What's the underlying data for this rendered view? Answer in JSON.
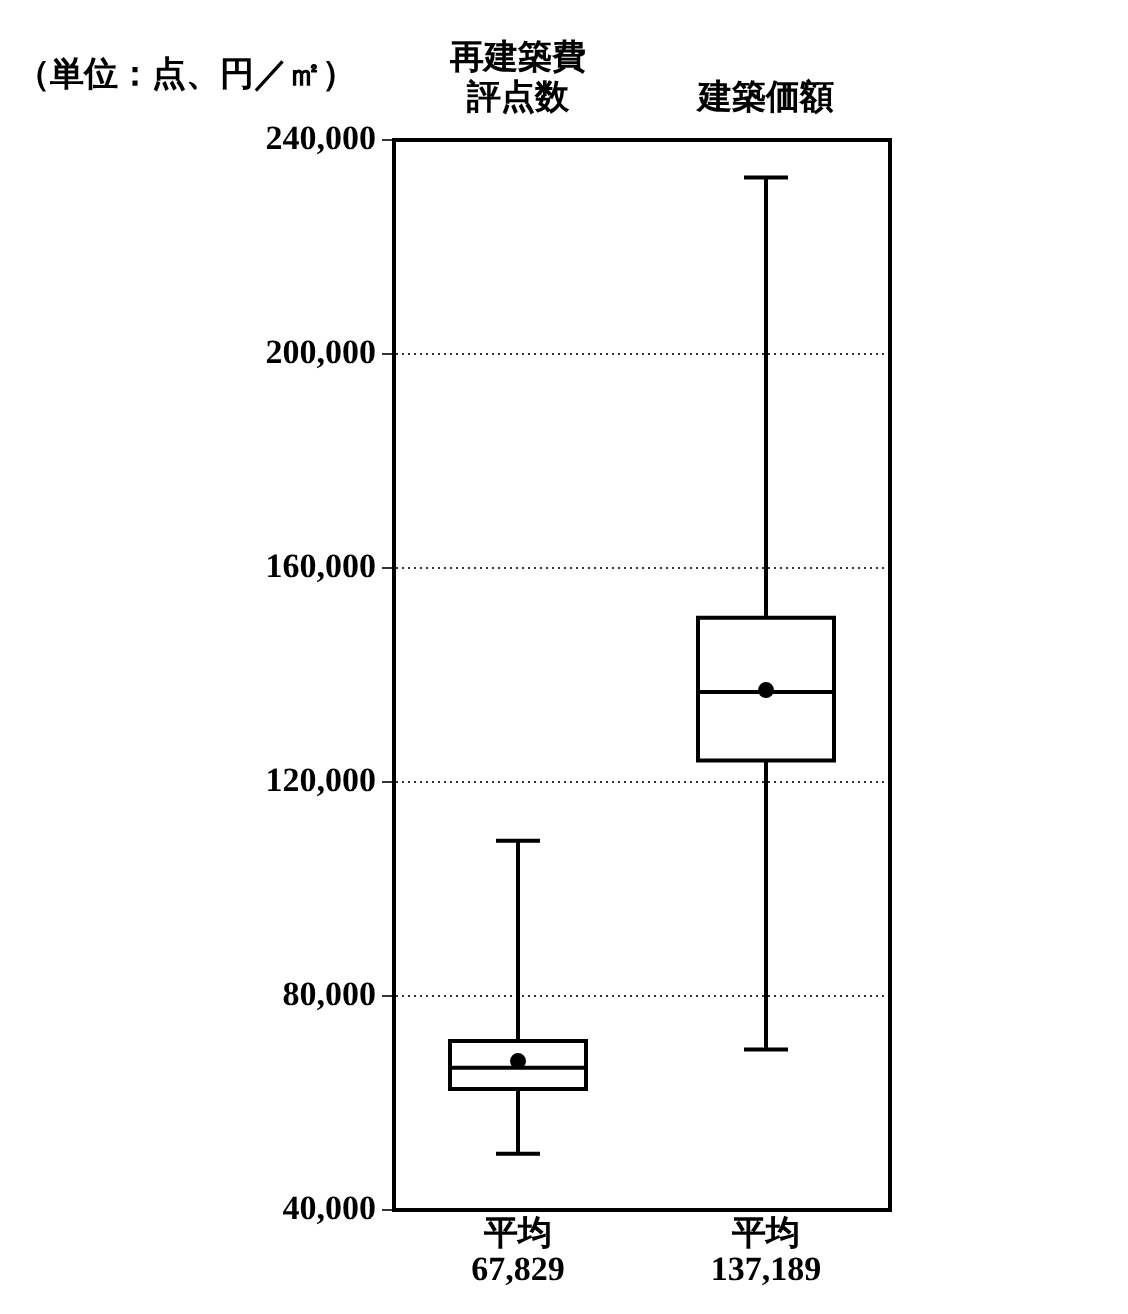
{
  "chart_data": {
    "type": "box",
    "ylabel": "（単位：点、円／㎡）",
    "categories": [
      "再建築費評点数",
      "建築価額"
    ],
    "boxes": [
      {
        "low": 50500,
        "q1": 62600,
        "median": 66600,
        "q3": 71600,
        "high": 109000,
        "mean": 67829
      },
      {
        "low": 70000,
        "q1": 124000,
        "median": 136800,
        "q3": 150700,
        "high": 233000,
        "mean": 137189
      }
    ],
    "ylim": [
      40000,
      240000
    ],
    "yticks": [
      {
        "value": 40000,
        "label": "40,000"
      },
      {
        "value": 80000,
        "label": "80,000"
      },
      {
        "value": 120000,
        "label": "120,000"
      },
      {
        "value": 160000,
        "label": "160,000"
      },
      {
        "value": 200000,
        "label": "200,000"
      },
      {
        "value": 240000,
        "label": "240,000"
      }
    ],
    "grid": "y",
    "annotations": [
      "平均\n67,829",
      "平均\n137,189"
    ]
  }
}
